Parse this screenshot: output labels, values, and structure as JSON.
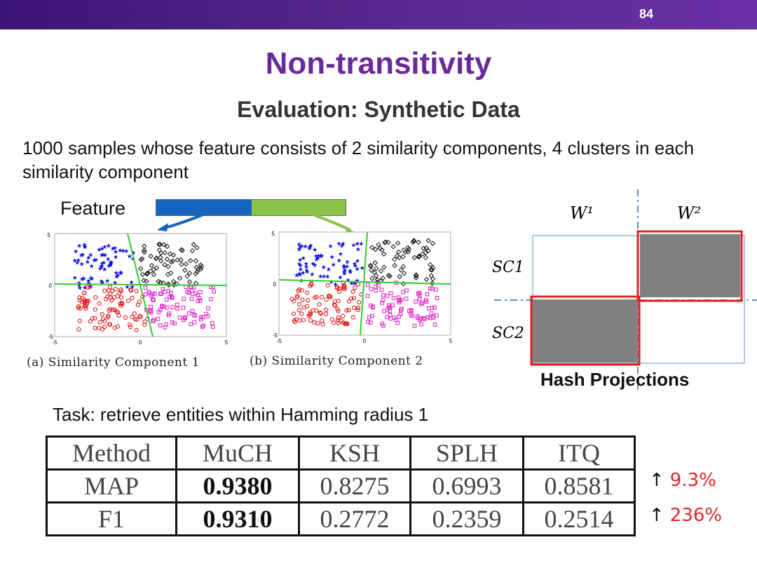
{
  "slide": {
    "page_number": "84",
    "title": "Non-transitivity",
    "subtitle": "Evaluation: Synthetic Data",
    "description": "1000 samples whose feature consists of 2 similarity components, 4 clusters in each similarity component",
    "feature_label": "Feature",
    "task": "Task: retrieve entities within Hamming radius 1"
  },
  "plots": {
    "a": {
      "caption": "(a) Similarity Component 1",
      "y_top": "5",
      "y_mid": "0",
      "y_bot": "-5",
      "x_left": "-5",
      "x_mid": "0",
      "x_right": "5"
    },
    "b": {
      "caption": "(b) Similarity Component 2",
      "y_top": "5",
      "y_mid": "0",
      "y_bot": "-5",
      "x_left": "-5",
      "x_mid": "0",
      "x_right": "5"
    }
  },
  "hash": {
    "w1": "W¹",
    "w2": "W²",
    "sc1": "SC1",
    "sc2": "SC2",
    "title": "Hash Projections"
  },
  "table": {
    "header": [
      "Method",
      "MuCH",
      "KSH",
      "SPLH",
      "ITQ"
    ],
    "rows": [
      [
        "MAP",
        "0.9380",
        "0.8275",
        "0.6993",
        "0.8581"
      ],
      [
        "F1",
        "0.9310",
        "0.2772",
        "0.2359",
        "0.2514"
      ]
    ]
  },
  "gains": {
    "arrow": "↑",
    "map": "9.3%",
    "f1": "236%"
  },
  "colors": {
    "accent": "#6a2a9a",
    "gain": "#e0262b",
    "bar_blue": "#1565c0",
    "bar_green": "#8bc34a"
  }
}
